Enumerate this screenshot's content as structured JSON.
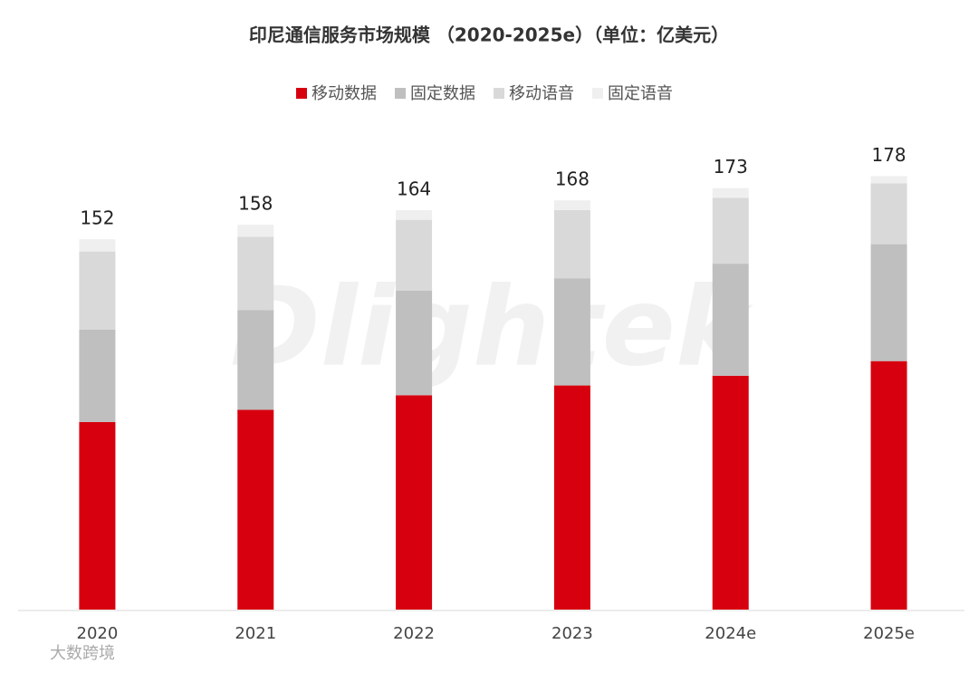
{
  "chart_data": {
    "type": "stacked-bar",
    "title": "印尼通信服务市场规模 （2020-2025e）（单位：亿美元）",
    "categories": [
      "2020",
      "2021",
      "2022",
      "2023",
      "2024e",
      "2025e"
    ],
    "series": [
      {
        "name": "移动数据",
        "color": "#d7000f",
        "values": [
          77,
          82,
          88,
          92,
          96,
          102
        ]
      },
      {
        "name": "固定数据",
        "color": "#bfbfbf",
        "values": [
          38,
          41,
          43,
          44,
          46,
          48
        ]
      },
      {
        "name": "移动语音",
        "color": "#d9d9d9",
        "values": [
          32,
          30,
          29,
          28,
          27,
          25
        ]
      },
      {
        "name": "固定语音",
        "color": "#efefef",
        "values": [
          5,
          5,
          4,
          4,
          4,
          3
        ]
      }
    ],
    "total_labels": [
      152,
      158,
      164,
      168,
      173,
      178
    ],
    "ylim": [
      0,
      190
    ],
    "legend": "top",
    "watermark": "Dlightek",
    "source_mark": "大数跨境"
  }
}
